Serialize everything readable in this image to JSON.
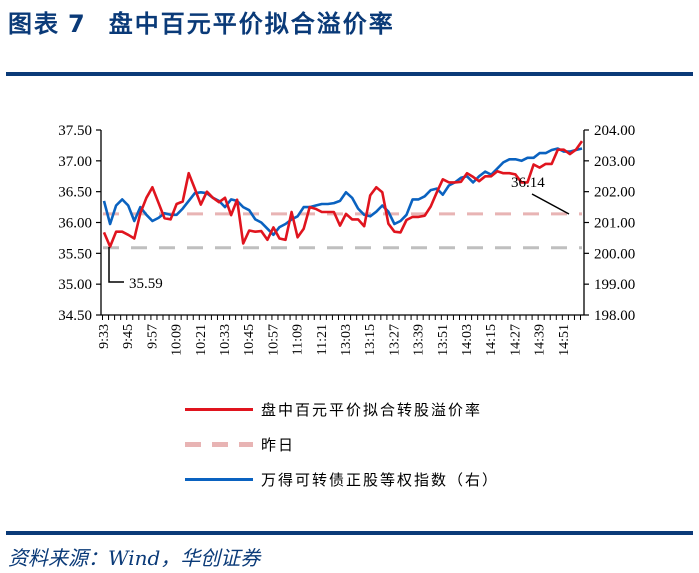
{
  "header": {
    "figure_label": "图表",
    "figure_number": "7",
    "title": "盘中百元平价拟合溢价率"
  },
  "footer": {
    "source": "资料来源：Wind，华创证券"
  },
  "colors": {
    "brand": "#0a3a78",
    "premium_line": "#e0141e",
    "yesterday_line": "#e8b4b4",
    "index_line": "#0a62c0",
    "reference_line": "#bfbfbf"
  },
  "legend": [
    {
      "label": "盘中百元平价拟合转股溢价率",
      "style": "solid",
      "color": "#e0141e"
    },
    {
      "label": "昨日",
      "style": "dashed",
      "color": "#e8b4b4"
    },
    {
      "label": "万得可转债正股等权指数（右）",
      "style": "solid",
      "color": "#0a62c0"
    }
  ],
  "annotations": {
    "low_label": "35.59",
    "yesterday_label": "36.14"
  },
  "chart_data": {
    "type": "line",
    "title": "盘中百元平价拟合溢价率",
    "xlabel": "",
    "ylabel": "",
    "y_left_ticks": [
      "37.50",
      "37.00",
      "36.50",
      "36.00",
      "35.50",
      "35.00",
      "34.50"
    ],
    "y_right_ticks": [
      "204.00",
      "203.00",
      "202.00",
      "201.00",
      "200.00",
      "199.00",
      "198.00"
    ],
    "x_tick_labels": [
      "9:33",
      "9:45",
      "9:57",
      "10:09",
      "10:21",
      "10:33",
      "10:45",
      "10:57",
      "11:09",
      "11:21",
      "13:03",
      "13:15",
      "13:27",
      "13:39",
      "13:51",
      "14:03",
      "14:15",
      "14:27",
      "14:39",
      "14:51"
    ],
    "ylim_left": [
      34.5,
      37.5
    ],
    "ylim_right": [
      198.0,
      204.0
    ],
    "grid": false,
    "legend_position": "bottom",
    "reference_lines": [
      {
        "name": "昨日",
        "axis": "left",
        "value": 36.14,
        "style": "dashed",
        "color": "#e8b4b4"
      },
      {
        "name": "最低",
        "axis": "left",
        "value": 35.59,
        "style": "dashed",
        "color": "#bfbfbf"
      }
    ],
    "series": [
      {
        "name": "盘中百元平价拟合转股溢价率",
        "axis": "left",
        "color": "#e0141e",
        "values": [
          35.84,
          35.61,
          35.85,
          35.85,
          35.8,
          35.74,
          36.15,
          36.4,
          36.57,
          36.32,
          36.07,
          36.05,
          36.3,
          36.34,
          36.8,
          36.55,
          36.29,
          36.5,
          36.4,
          36.33,
          36.4,
          36.12,
          36.37,
          35.66,
          35.87,
          35.85,
          35.86,
          35.72,
          35.92,
          35.74,
          35.72,
          36.17,
          35.76,
          35.9,
          36.25,
          36.22,
          36.17,
          36.17,
          36.17,
          35.95,
          36.14,
          36.05,
          36.05,
          35.94,
          36.44,
          36.57,
          36.49,
          35.98,
          35.85,
          35.84,
          36.04,
          36.09,
          36.09,
          36.11,
          36.26,
          36.49,
          36.7,
          36.65,
          36.65,
          36.66,
          36.8,
          36.74,
          36.67,
          36.75,
          36.75,
          36.83,
          36.8,
          36.8,
          36.78,
          36.65,
          36.65,
          36.94,
          36.89,
          36.95,
          36.95,
          37.18,
          37.18,
          37.11,
          37.18,
          37.32
        ]
      },
      {
        "name": "万得可转债正股等权指数（右）",
        "axis": "right",
        "color": "#0a62c0",
        "values": [
          201.7,
          200.95,
          201.55,
          201.75,
          201.55,
          201.05,
          201.5,
          201.25,
          201.05,
          201.15,
          201.3,
          201.25,
          201.25,
          201.45,
          201.7,
          201.95,
          201.98,
          201.95,
          201.8,
          201.7,
          201.5,
          201.75,
          201.7,
          201.5,
          201.4,
          201.1,
          201.0,
          200.8,
          200.6,
          200.85,
          200.95,
          201.1,
          201.2,
          201.5,
          201.5,
          201.55,
          201.6,
          201.6,
          201.63,
          201.7,
          201.98,
          201.8,
          201.45,
          201.25,
          201.2,
          201.35,
          201.55,
          201.35,
          200.95,
          201.05,
          201.25,
          201.75,
          201.75,
          201.85,
          202.05,
          202.1,
          201.9,
          202.2,
          202.3,
          202.45,
          202.5,
          202.3,
          202.5,
          202.65,
          202.55,
          202.75,
          202.95,
          203.05,
          203.05,
          203.0,
          203.1,
          203.1,
          203.25,
          203.25,
          203.35,
          203.4,
          203.3,
          203.3,
          203.35,
          203.4
        ]
      }
    ]
  }
}
